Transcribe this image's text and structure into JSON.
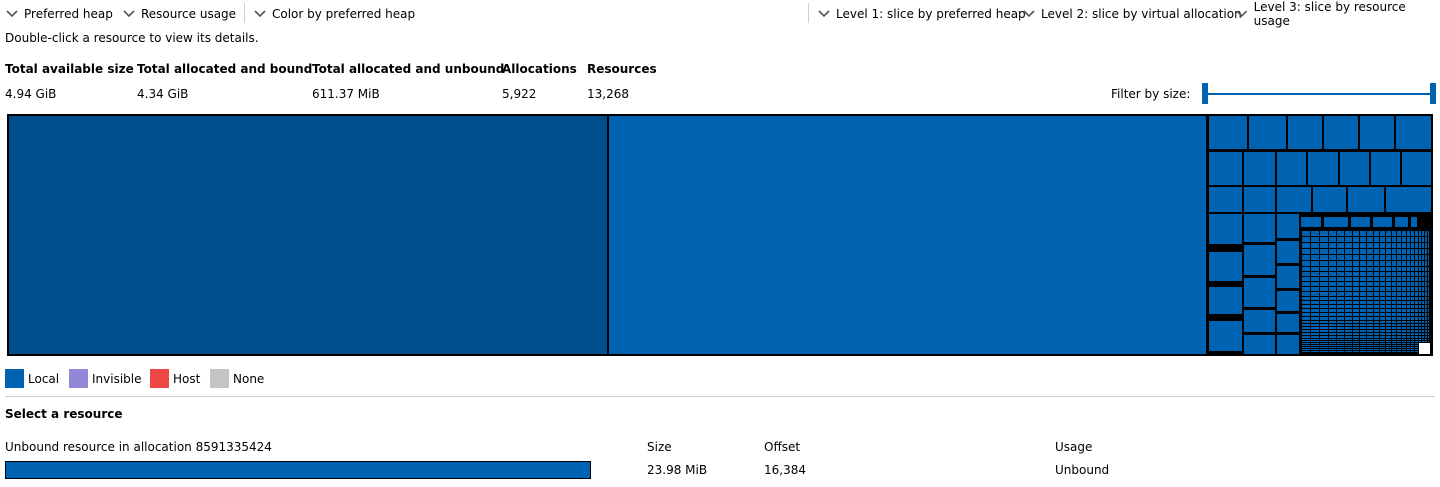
{
  "toolbar": {
    "left": [
      {
        "label": "Preferred heap"
      },
      {
        "label": "Resource usage"
      },
      {
        "label": "Color by preferred heap"
      }
    ],
    "right": [
      {
        "label": "Level 1: slice by preferred heap"
      },
      {
        "label": "Level 2: slice by virtual allocation"
      },
      {
        "label": "Level 3: slice by resource usage"
      }
    ]
  },
  "hint": "Double-click a resource to view its details.",
  "stats": {
    "headers": [
      "Total available size",
      "Total allocated and bound",
      "Total allocated and unbound",
      "Allocations",
      "Resources"
    ],
    "values": [
      "4.94 GiB",
      "4.34 GiB",
      "611.37 MiB",
      "5,922",
      "13,268"
    ]
  },
  "filter": {
    "label": "Filter by size:",
    "min": 0,
    "max": 1
  },
  "treemap": {
    "fill_colors": [
      "#004f8c",
      "#0063b1"
    ],
    "border_color": "#000000"
  },
  "legend": [
    {
      "label": "Local",
      "color": "#0063b1"
    },
    {
      "label": "Invisible",
      "color": "#9189d8"
    },
    {
      "label": "Host",
      "color": "#ef4646"
    },
    {
      "label": "None",
      "color": "#c4c4c4"
    }
  ],
  "selection": {
    "title": "Select a resource",
    "resource_name": "Unbound resource in allocation 8591335424",
    "bar_color": "#0063b1",
    "columns": [
      {
        "header": "Size",
        "value": "23.98 MiB"
      },
      {
        "header": "Offset",
        "value": "16,384"
      },
      {
        "header": "Usage",
        "value": "Unbound"
      }
    ]
  }
}
